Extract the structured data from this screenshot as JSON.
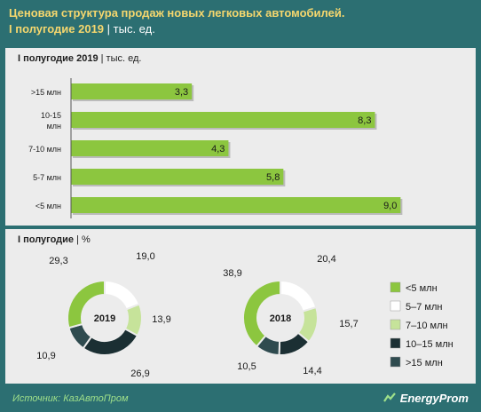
{
  "title": {
    "line1": "Ценовая структура продаж новых легковых автомобилей.",
    "line2": "I полугодие 2019",
    "unit": "| тыс. ед."
  },
  "bar_panel": {
    "title": "I полугодие 2019",
    "unit": "| тыс. ед."
  },
  "donut_panel": {
    "title": "I полугодие",
    "unit": "| %"
  },
  "source": "Источник: КазАвтоПром",
  "logo": {
    "text": "EnergyProm",
    "icon": "energy-logo-icon"
  },
  "colors": {
    "lt5": "#8cc63f",
    "5to7": "#ffffff",
    "7to10": "#c6e39a",
    "10to15": "#1b2f33",
    "gt15": "#2f4b4f",
    "bar": "#8cc63f"
  },
  "chart_data": [
    {
      "type": "bar",
      "orientation": "horizontal",
      "categories": [
        ">15 млн",
        "10-15 млн",
        "7-10 млн",
        "5-7 млн",
        "<5 млн"
      ],
      "values": [
        3.3,
        8.3,
        4.3,
        5.8,
        9.0
      ],
      "value_labels": [
        "3,3",
        "8,3",
        "4,3",
        "5,8",
        "9,0"
      ],
      "xlim": [
        0,
        9.5
      ],
      "grid": false
    },
    {
      "type": "pie",
      "donut": true,
      "center_label": "2019",
      "slices": [
        {
          "category": "<5 млн",
          "value": 29.3,
          "label": "29,3",
          "color_key": "lt5"
        },
        {
          "category": "5–7 млн",
          "value": 19.0,
          "label": "19,0",
          "color_key": "5to7"
        },
        {
          "category": "7–10 млн",
          "value": 13.9,
          "label": "13,9",
          "color_key": "7to10"
        },
        {
          "category": "10–15 млн",
          "value": 26.9,
          "label": "26,9",
          "color_key": "10to15"
        },
        {
          "category": ">15 млн",
          "value": 10.9,
          "label": "10,9",
          "color_key": "gt15"
        }
      ]
    },
    {
      "type": "pie",
      "donut": true,
      "center_label": "2018",
      "slices": [
        {
          "category": "<5 млн",
          "value": 38.9,
          "label": "38,9",
          "color_key": "lt5"
        },
        {
          "category": "5–7 млн",
          "value": 20.4,
          "label": "20,4",
          "color_key": "5to7"
        },
        {
          "category": "7–10 млн",
          "value": 15.7,
          "label": "15,7",
          "color_key": "7to10"
        },
        {
          "category": "10–15 млн",
          "value": 14.4,
          "label": "14,4",
          "color_key": "10to15"
        },
        {
          "category": ">15 млн",
          "value": 10.5,
          "label": "10,5",
          "color_key": "gt15"
        }
      ]
    }
  ],
  "legend": [
    {
      "label": "<5 млн",
      "color_key": "lt5"
    },
    {
      "label": "5–7 млн",
      "color_key": "5to7"
    },
    {
      "label": "7–10 млн",
      "color_key": "7to10"
    },
    {
      "label": "10–15 млн",
      "color_key": "10to15"
    },
    {
      "label": ">15 млн",
      "color_key": "gt15"
    }
  ]
}
